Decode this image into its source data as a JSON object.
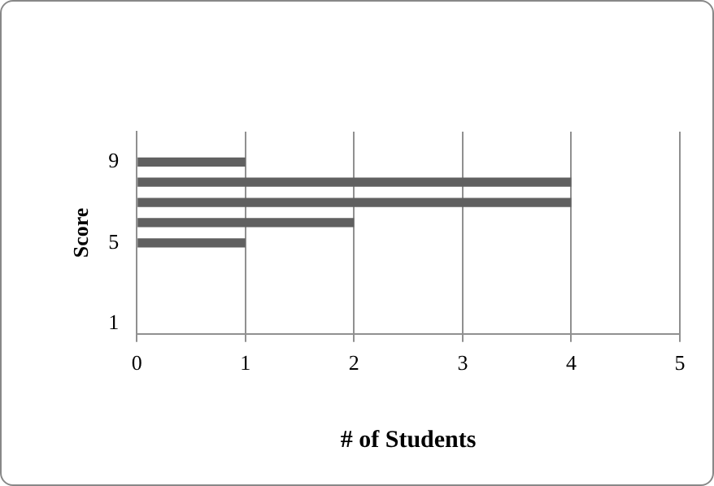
{
  "chart_data": {
    "type": "bar",
    "orientation": "horizontal",
    "xlabel": "# of Students",
    "ylabel": "Score",
    "categories": [
      null,
      "9",
      null,
      null,
      null,
      "5",
      null,
      null,
      null,
      "1"
    ],
    "values": [
      0,
      1,
      4,
      4,
      2,
      1,
      0,
      0,
      0,
      0
    ],
    "color": "#606060",
    "xlim": [
      0,
      5
    ],
    "xticks": [
      0,
      1,
      2,
      3,
      4,
      5
    ],
    "grid": "x",
    "legend": false
  }
}
